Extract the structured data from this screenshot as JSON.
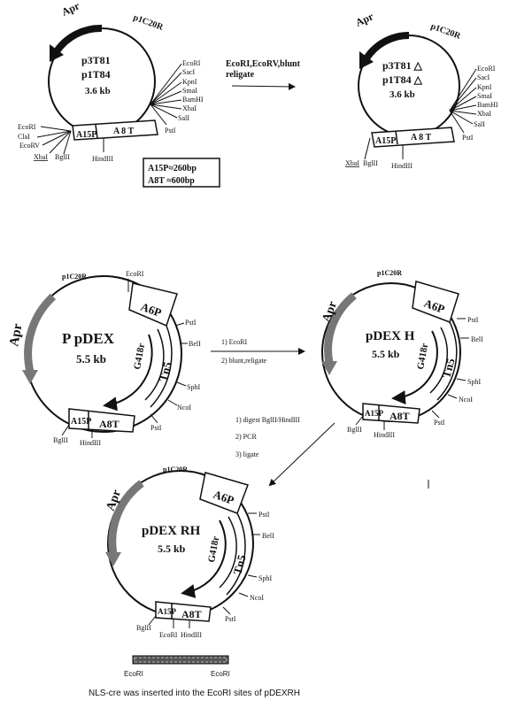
{
  "plasmid1": {
    "name_a": "p3T81",
    "name_b": "p1T84",
    "size": "3.6 kb",
    "amp": "Apr",
    "ori": "p1C20R",
    "sites_right": [
      "EcoRI",
      "SacI",
      "KpnI",
      "SmaI",
      "BamHI",
      "XbaI",
      "SalI",
      "PstI"
    ],
    "sites_left": [
      "EcoRI",
      "ClaI",
      "EcoRV",
      "XbaI",
      "BglII"
    ],
    "hind": "HindIII",
    "seg_a15p": "A15P",
    "seg_a8t": "A 8 T"
  },
  "legend": {
    "line1": "A15P≈260bp",
    "line2": "A8T  ≈600bp"
  },
  "arrow1_label": {
    "line1": "EcoRI,EcoRV,blunt",
    "line2": "religate"
  },
  "plasmid2": {
    "name_a": "p3T81 △",
    "name_b": "p1T84 △",
    "size": "3.6 kb",
    "amp": "Apr",
    "ori": "p1C20R",
    "sites_right": [
      "EcoRI",
      "SacI",
      "KpnI",
      "SmaI",
      "BamHI",
      "XbaI",
      "SalI",
      "PstI"
    ],
    "sites_left": [
      "XbaI",
      "BglII"
    ],
    "hind": "HindIII",
    "seg_a15p": "A15P",
    "seg_a8t": "A 8 T"
  },
  "plasmid3": {
    "name": "P pDEX",
    "size": "5.5 kb",
    "amp": "Apr",
    "ori": "p1C20R",
    "ecori": "EcoRI",
    "a6p": "A6P",
    "g418": "G418r",
    "tn5": "Tn5",
    "sites": [
      "PstI",
      "BelI",
      "SphI",
      "NcoI",
      "PstI"
    ],
    "bgl": "BglII",
    "hind": "HindIII",
    "seg_a15p": "A15P",
    "seg_a8t": "A8T"
  },
  "arrow2_label": {
    "step1": "1)    EcoRI",
    "step2": "2)  blunt,religate"
  },
  "plasmid4": {
    "name": "pDEX H",
    "size": "5.5 kb",
    "amp": "Apr",
    "ori": "p1C20R",
    "a6p": "A6P",
    "g418": "G418r",
    "tn5": "Tn5",
    "sites": [
      "PstI",
      "BelI",
      "SphI",
      "NcoI",
      "PstI"
    ],
    "bgl": "BglII",
    "hind": "HindIII",
    "seg_a15p": "A15P",
    "seg_a8t": "A8T"
  },
  "arrow3_label": {
    "step1": "1)  digest BglII/HindIII",
    "step2": "2)  PCR",
    "step3": "3)  ligate"
  },
  "plasmid5": {
    "name": "pDEX RH",
    "size": "5.5 kb",
    "amp": "Apr",
    "ori": "p1C20R",
    "a6p": "A6P",
    "g418": "G418r",
    "tn5": "Tn5",
    "sites": [
      "PstI",
      "BelI",
      "SphI",
      "NcoI",
      "PstI"
    ],
    "bgl": "BglII",
    "ecori": "EcoRI",
    "hind": "HindIII",
    "seg_a15p": "A15P",
    "seg_a8t": "A8T"
  },
  "insert": {
    "left": "EcoRI",
    "right": "EcoRI"
  },
  "caption": "NLS-cre was inserted into the EcoRI sites of pDEXRH"
}
